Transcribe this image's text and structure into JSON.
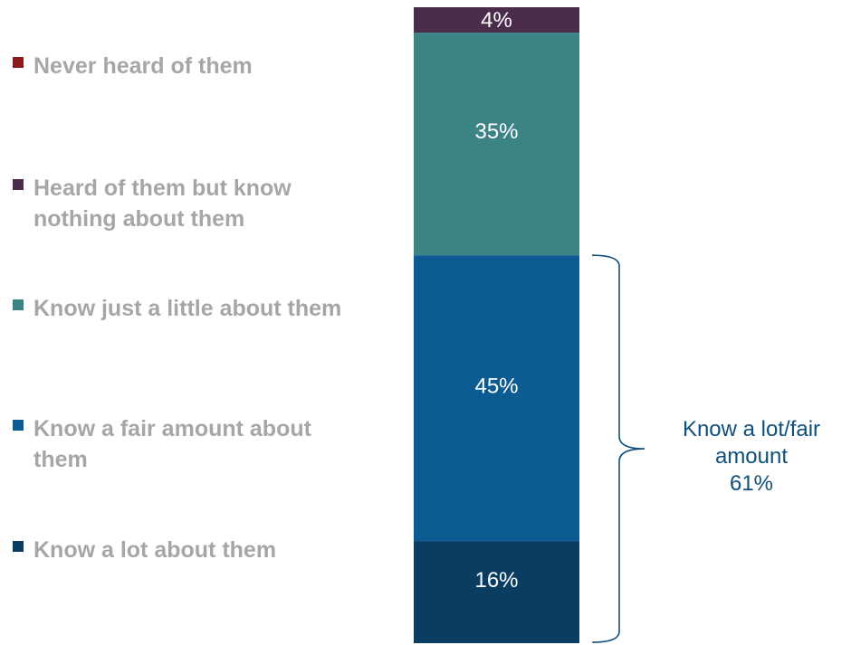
{
  "chart_data": {
    "type": "bar",
    "stacked": true,
    "categories": [
      ""
    ],
    "series": [
      {
        "name": "Know a lot about them",
        "values": [
          16
        ],
        "color": "#0a3d62",
        "label": "16%"
      },
      {
        "name": "Know a fair amount about them",
        "values": [
          45
        ],
        "color": "#0c5b93",
        "label": "45%"
      },
      {
        "name": "Know just a little about them",
        "values": [
          35
        ],
        "color": "#3c8385",
        "label": "35%"
      },
      {
        "name": "Heard of them but know nothing about them",
        "values": [
          4
        ],
        "color": "#4a2d4a",
        "label": "4%"
      },
      {
        "name": "Never heard of them",
        "values": [
          0
        ],
        "color": "#8b1a1a",
        "label": ""
      }
    ],
    "ylim": [
      0,
      100
    ],
    "legend": [
      {
        "label": "Never heard of them",
        "color": "#8b1a1a"
      },
      {
        "label": "Heard of them but know nothing about them",
        "color": "#4a2d4a"
      },
      {
        "label": "Know just a little about them",
        "color": "#3c8385"
      },
      {
        "label": "Know a fair amount about them",
        "color": "#0c5b93"
      },
      {
        "label": "Know a lot about them",
        "color": "#0a3d62"
      }
    ],
    "legend_position": "left",
    "annotation": {
      "line1": "Know a lot/fair",
      "line2": "amount",
      "line3": "61%",
      "color": "#0f4f7c"
    }
  }
}
